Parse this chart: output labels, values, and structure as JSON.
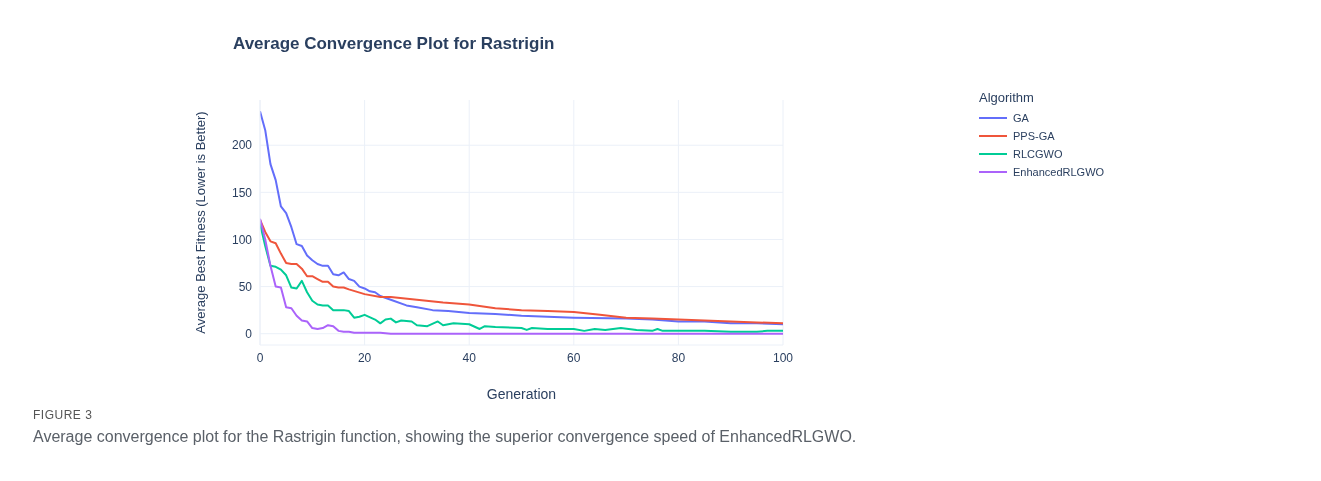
{
  "chart_data": {
    "type": "line",
    "title": "Average Convergence Plot for Rastrigin",
    "xlabel": "Generation",
    "ylabel": "Average Best Fitness (Lower is Better)",
    "legend_title": "Algorithm",
    "legend": "top right",
    "grid": true,
    "marker": "none",
    "line_style": "solid",
    "xlim": [
      0,
      100
    ],
    "xticks": [
      0,
      20,
      40,
      60,
      80,
      100
    ],
    "ylim": [
      -12,
      248
    ],
    "yticks": [
      0,
      50,
      100,
      150,
      200
    ],
    "annotations": [
      "FIGURE 3",
      "Average convergence plot for the Rastrigin function, showing the superior convergence speed of EnhancedRLGWO."
    ],
    "series": [
      {
        "name": "GA",
        "color": "#636efa",
        "x": [
          0,
          1,
          2,
          3,
          4,
          5,
          6,
          7,
          8,
          9,
          10,
          11,
          12,
          13,
          14,
          15,
          16,
          17,
          18,
          19,
          20,
          21,
          22,
          23,
          25,
          28,
          30,
          33,
          36,
          40,
          45,
          50,
          60,
          70,
          75,
          80,
          85,
          90,
          95,
          100
        ],
        "values": [
          236,
          216,
          180,
          163,
          135,
          128,
          113,
          95,
          93,
          83,
          78,
          74,
          72,
          72,
          63,
          62,
          65,
          58,
          56,
          50,
          48,
          45,
          44,
          40,
          36,
          30,
          28,
          25,
          24,
          22,
          21,
          19,
          17,
          16,
          15,
          13,
          13,
          11,
          11,
          10
        ]
      },
      {
        "name": "PPS-GA",
        "color": "#ef553b",
        "x": [
          0,
          1,
          2,
          3,
          4,
          5,
          6,
          7,
          8,
          9,
          10,
          11,
          12,
          13,
          14,
          15,
          16,
          17,
          20,
          23,
          25,
          30,
          35,
          40,
          45,
          50,
          55,
          60,
          65,
          70,
          75,
          80,
          85,
          90,
          95,
          100
        ],
        "values": [
          121,
          108,
          98,
          96,
          85,
          75,
          74,
          74,
          69,
          61,
          61,
          58,
          55,
          55,
          50,
          49,
          49,
          47,
          42,
          39,
          39,
          36,
          33,
          31,
          27,
          25,
          24,
          23,
          20,
          17,
          16,
          15,
          14,
          13,
          12,
          11
        ]
      },
      {
        "name": "RLCGWO",
        "color": "#00cc96",
        "x": [
          0,
          1,
          2,
          3,
          4,
          5,
          6,
          7,
          8,
          9,
          10,
          11,
          12,
          13,
          14,
          15,
          16,
          17,
          18,
          19,
          20,
          22,
          23,
          24,
          25,
          26,
          27,
          29,
          30,
          32,
          34,
          35,
          37,
          40,
          42,
          43,
          45,
          50,
          51,
          52,
          55,
          60,
          62,
          64,
          66,
          69,
          72,
          75,
          76,
          77,
          80,
          85,
          90,
          95,
          97,
          100
        ],
        "values": [
          117,
          93,
          72,
          71,
          68,
          62,
          49,
          48,
          56,
          44,
          35,
          31,
          30,
          30,
          25,
          25,
          25,
          24,
          17,
          18,
          20,
          15,
          11,
          15,
          16,
          12,
          14,
          13,
          9,
          8,
          13,
          9,
          11,
          10,
          5,
          8,
          7,
          6,
          4,
          6,
          5,
          5,
          3,
          5,
          4,
          6,
          4,
          3,
          5,
          3,
          3,
          3,
          2,
          2,
          3,
          3
        ]
      },
      {
        "name": "EnhancedRLGWO",
        "color": "#ab63fa",
        "x": [
          0,
          1,
          2,
          3,
          4,
          5,
          6,
          7,
          8,
          9,
          10,
          11,
          12,
          13,
          14,
          15,
          16,
          17,
          18,
          20,
          23,
          25,
          30,
          50,
          100
        ],
        "values": [
          122,
          100,
          72,
          50,
          49,
          28,
          27,
          19,
          14,
          13,
          6,
          5,
          6,
          9,
          8,
          3,
          2,
          2,
          1,
          1,
          1,
          0,
          0,
          0,
          0
        ]
      }
    ]
  }
}
